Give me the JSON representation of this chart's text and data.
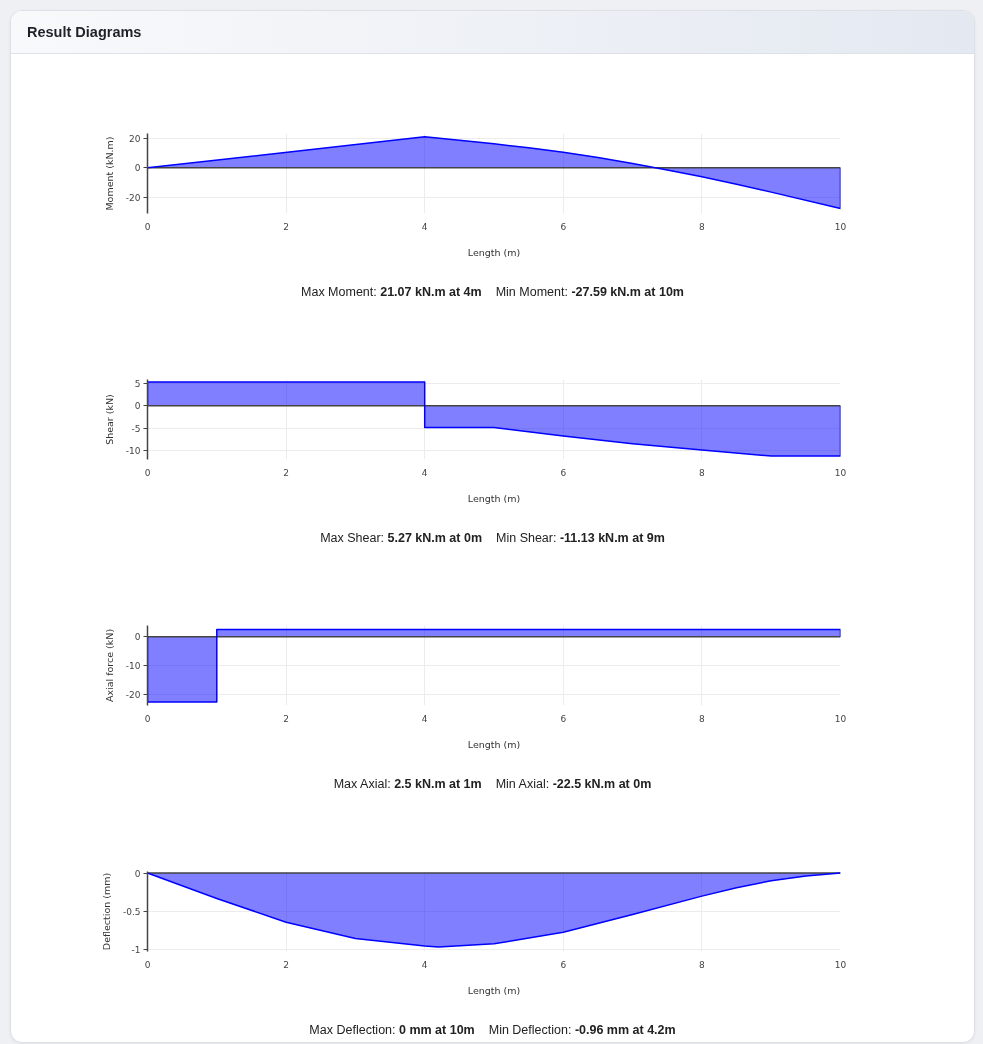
{
  "chart_data": [
    {
      "type": "area",
      "title": "Result Diagrams",
      "xlabel": "Length (m)",
      "ylabel": "Moment (kN.m)",
      "x": [
        0,
        4,
        5,
        5.5,
        6,
        6.5,
        7,
        7.5,
        8,
        8.5,
        9,
        10,
        10
      ],
      "values": [
        0,
        21.07,
        16.3,
        13.6,
        10.5,
        7.0,
        3.0,
        -1.4,
        -6.0,
        -11.1,
        -16.5,
        -27.59,
        0
      ],
      "color": "#0000ff",
      "xlim": [
        0,
        10
      ],
      "xticks": [
        0,
        2,
        4,
        6,
        8,
        10
      ],
      "ylim": [
        -31,
        23.3
      ],
      "yticks": [
        -20,
        0,
        20
      ],
      "grid": true,
      "annotations": [
        "Max Moment: 21.07 kN.m at 4m",
        "Min Moment: -27.59 kN.m at 10m"
      ]
    },
    {
      "type": "area",
      "xlabel": "Length (m)",
      "ylabel": "Shear (kN)",
      "x": [
        0,
        0,
        4,
        4,
        5,
        6,
        7,
        8,
        9,
        10,
        10
      ],
      "values": [
        0,
        5.27,
        5.27,
        -4.8,
        -4.8,
        -6.7,
        -8.4,
        -9.8,
        -11.13,
        -11.13,
        0
      ],
      "color": "#0000ff",
      "xlim": [
        0,
        10
      ],
      "xticks": [
        0,
        2,
        4,
        6,
        8,
        10
      ],
      "ylim": [
        -11.9,
        5.8
      ],
      "yticks": [
        -10,
        -5,
        0,
        5
      ],
      "grid": true,
      "annotations": [
        "Max Shear: 5.27 kN.m at 0m",
        "Min Shear: -11.13 kN.m at 9m"
      ]
    },
    {
      "type": "area",
      "xlabel": "Length (m)",
      "ylabel": "Axial force (kN)",
      "x": [
        0,
        0,
        1,
        1,
        10,
        10
      ],
      "values": [
        0,
        -22.5,
        -22.5,
        2.5,
        2.5,
        0
      ],
      "color": "#0000ff",
      "xlim": [
        0,
        10
      ],
      "xticks": [
        0,
        2,
        4,
        6,
        8,
        10
      ],
      "ylim": [
        -23.7,
        3.9
      ],
      "yticks": [
        -20,
        -10,
        0
      ],
      "grid": true,
      "annotations": [
        "Max Axial: 2.5 kN.m at 1m",
        "Min Axial: -22.5 kN.m at 0m"
      ]
    },
    {
      "type": "area",
      "xlabel": "Length (m)",
      "ylabel": "Deflection (mm)",
      "x": [
        0,
        1,
        2,
        3,
        4,
        4.2,
        5,
        6,
        7,
        8,
        8.5,
        9,
        9.5,
        10
      ],
      "values": [
        0,
        -0.33,
        -0.64,
        -0.85,
        -0.95,
        -0.96,
        -0.92,
        -0.77,
        -0.54,
        -0.3,
        -0.19,
        -0.1,
        -0.04,
        0
      ],
      "color": "#0000ff",
      "xlim": [
        0,
        10
      ],
      "xticks": [
        0,
        2,
        4,
        6,
        8,
        10
      ],
      "ylim": [
        -1.02,
        0.02
      ],
      "yticks": [
        -1,
        -0.5,
        0
      ],
      "grid": true,
      "annotations": [
        "Max Deflection: 0 mm at 10m",
        "Min Deflection: -0.96 mm at 4.2m"
      ]
    }
  ]
}
